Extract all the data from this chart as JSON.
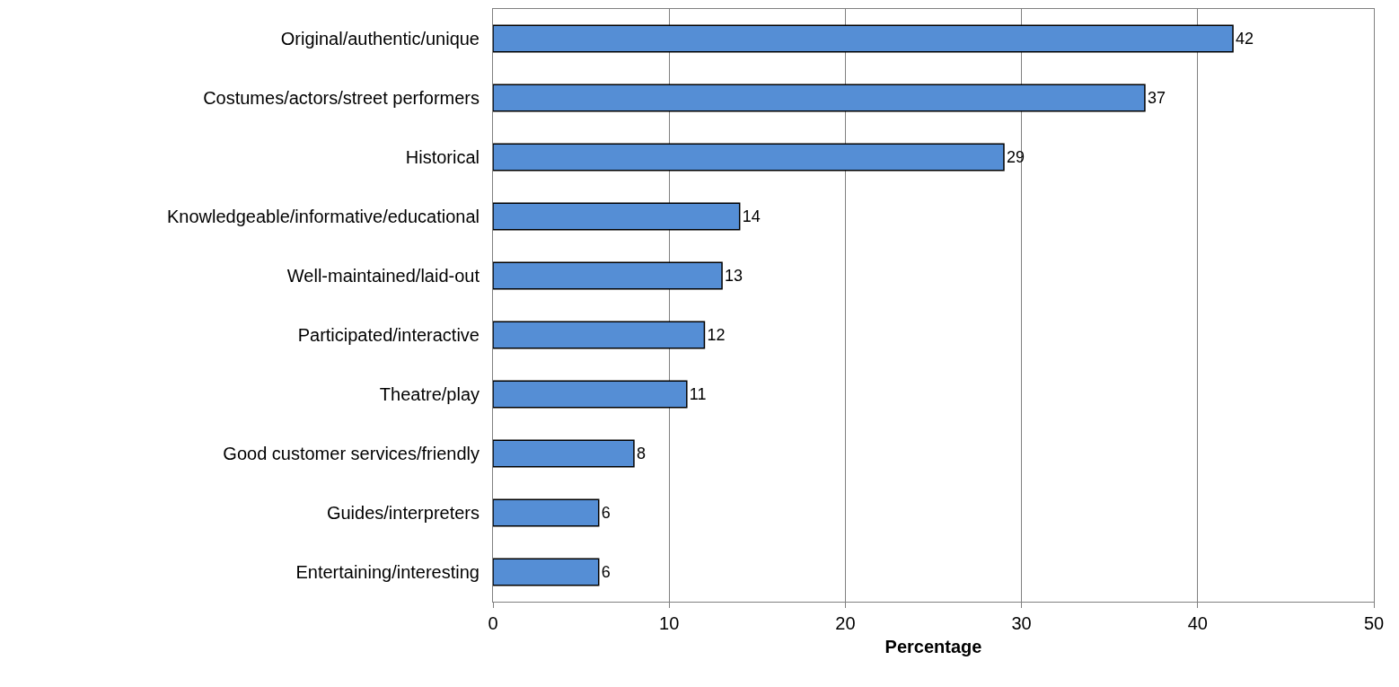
{
  "chart_data": {
    "type": "bar",
    "orientation": "horizontal",
    "xlabel": "Percentage",
    "categories": [
      "Original/authentic/unique",
      "Costumes/actors/street performers",
      "Historical",
      "Knowledgeable/informative/educational",
      "Well-maintained/laid-out",
      "Participated/interactive",
      "Theatre/play",
      "Good customer services/friendly",
      "Guides/interpreters",
      "Entertaining/interesting"
    ],
    "values": [
      42,
      37,
      29,
      14,
      13,
      12,
      11,
      8,
      6,
      6
    ],
    "color": "#558ed5",
    "xlim": [
      0,
      50
    ],
    "xticks": [
      0,
      10,
      20,
      30,
      40,
      50
    ],
    "grid": "x",
    "data_labels": true,
    "legend": false
  }
}
